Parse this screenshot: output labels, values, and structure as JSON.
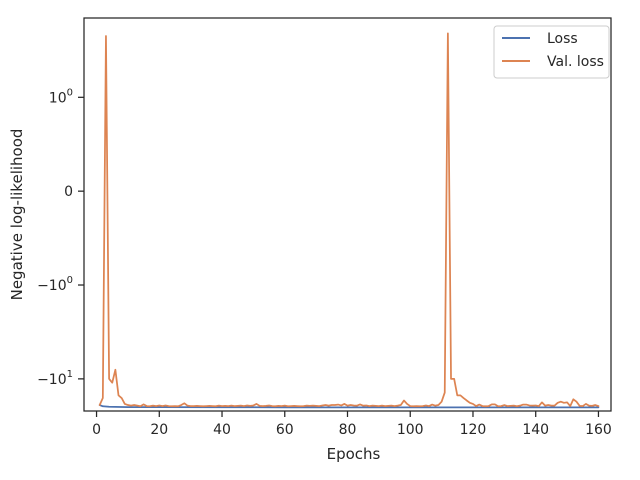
{
  "chart_data": {
    "type": "line",
    "title": "",
    "xlabel": "Epochs",
    "ylabel": "Negative log-likelihood",
    "xlim": [
      -4,
      164
    ],
    "x_ticks": [
      0,
      20,
      40,
      60,
      80,
      100,
      120,
      140,
      160
    ],
    "y_scale": "symlog",
    "y_ticks": [
      {
        "value": 1,
        "base": "10",
        "exp": "0"
      },
      {
        "value": 0,
        "base": "0",
        "exp": ""
      },
      {
        "value": -1,
        "base": "−10",
        "exp": "0"
      },
      {
        "value": -10,
        "base": "−10",
        "exp": "1"
      }
    ],
    "ylim": [
      -22,
      7
    ],
    "grid": false,
    "legend_position": "top-right",
    "series": [
      {
        "name": "Loss",
        "color": "#4c72b0",
        "x": [
          1,
          2,
          4,
          6,
          10,
          20,
          40,
          60,
          80,
          100,
          120,
          140,
          160
        ],
        "y": [
          -19.0,
          -19.6,
          -19.8,
          -19.9,
          -20.0,
          -20.0,
          -20.05,
          -20.1,
          -20.1,
          -20.1,
          -20.1,
          -20.15,
          -20.15
        ]
      },
      {
        "name": "Val. loss",
        "color": "#dd8452",
        "x": [
          1,
          2,
          3,
          4,
          5,
          6,
          7,
          8,
          9,
          10,
          11,
          12,
          13,
          14,
          15,
          16,
          17,
          18,
          19,
          20,
          21,
          22,
          23,
          24,
          25,
          26,
          27,
          28,
          29,
          30,
          31,
          32,
          33,
          34,
          35,
          36,
          37,
          38,
          39,
          40,
          41,
          42,
          43,
          44,
          45,
          46,
          47,
          48,
          49,
          50,
          51,
          52,
          53,
          54,
          55,
          56,
          57,
          58,
          59,
          60,
          61,
          62,
          63,
          64,
          65,
          66,
          67,
          68,
          69,
          70,
          71,
          72,
          73,
          74,
          75,
          76,
          77,
          78,
          79,
          80,
          81,
          82,
          83,
          84,
          85,
          86,
          87,
          88,
          89,
          90,
          91,
          92,
          93,
          94,
          95,
          96,
          97,
          98,
          99,
          100,
          101,
          102,
          103,
          104,
          105,
          106,
          107,
          108,
          109,
          110,
          111,
          112,
          113,
          114,
          115,
          116,
          117,
          118,
          119,
          120,
          121,
          122,
          123,
          124,
          125,
          126,
          127,
          128,
          129,
          130,
          131,
          132,
          133,
          134,
          135,
          136,
          137,
          138,
          139,
          140,
          141,
          142,
          143,
          144,
          145,
          146,
          147,
          148,
          149,
          150,
          151,
          152,
          153,
          154,
          155,
          156,
          157,
          158,
          159,
          160
        ],
        "y": [
          -19.0,
          -16.0,
          4.5,
          -10.0,
          -11.0,
          -8.0,
          -15.0,
          -16.0,
          -18.5,
          -19.0,
          -19.3,
          -19.0,
          -19.3,
          -19.6,
          -18.7,
          -19.5,
          -19.6,
          -19.3,
          -19.5,
          -19.2,
          -19.5,
          -19.2,
          -19.5,
          -19.6,
          -19.5,
          -19.6,
          -19.0,
          -18.2,
          -19.3,
          -19.5,
          -19.5,
          -19.4,
          -19.5,
          -19.6,
          -19.5,
          -19.4,
          -19.5,
          -19.6,
          -19.3,
          -19.5,
          -19.4,
          -19.5,
          -19.3,
          -19.5,
          -19.4,
          -19.3,
          -19.5,
          -19.2,
          -19.4,
          -19.2,
          -18.5,
          -19.4,
          -19.5,
          -19.4,
          -19.2,
          -19.5,
          -19.6,
          -19.4,
          -19.5,
          -19.3,
          -19.6,
          -19.5,
          -19.4,
          -19.5,
          -19.6,
          -19.5,
          -19.3,
          -19.4,
          -19.3,
          -19.4,
          -19.5,
          -19.2,
          -19.0,
          -19.3,
          -19.0,
          -19.0,
          -18.8,
          -19.2,
          -18.5,
          -19.3,
          -19.0,
          -19.2,
          -19.3,
          -18.7,
          -19.3,
          -19.2,
          -19.5,
          -19.3,
          -19.4,
          -19.5,
          -19.3,
          -19.5,
          -19.4,
          -19.3,
          -19.5,
          -19.3,
          -19.0,
          -17.0,
          -18.5,
          -19.5,
          -19.6,
          -19.5,
          -19.6,
          -19.5,
          -19.2,
          -19.5,
          -18.8,
          -19.3,
          -19.0,
          -17.5,
          -14.0,
          4.8,
          -10.0,
          -10.0,
          -15.0,
          -15.0,
          -16.0,
          -17.0,
          -18.0,
          -18.5,
          -19.5,
          -18.8,
          -19.5,
          -19.6,
          -19.5,
          -18.7,
          -18.7,
          -19.6,
          -19.5,
          -19.0,
          -19.5,
          -19.4,
          -19.3,
          -19.6,
          -19.3,
          -18.8,
          -18.8,
          -19.2,
          -19.3,
          -19.2,
          -19.5,
          -17.8,
          -19.3,
          -19.0,
          -19.3,
          -19.3,
          -18.0,
          -17.5,
          -18.0,
          -17.8,
          -19.5,
          -16.5,
          -17.5,
          -19.4,
          -19.5,
          -18.5,
          -19.3,
          -19.4,
          -19.0,
          -19.5
        ]
      }
    ]
  }
}
